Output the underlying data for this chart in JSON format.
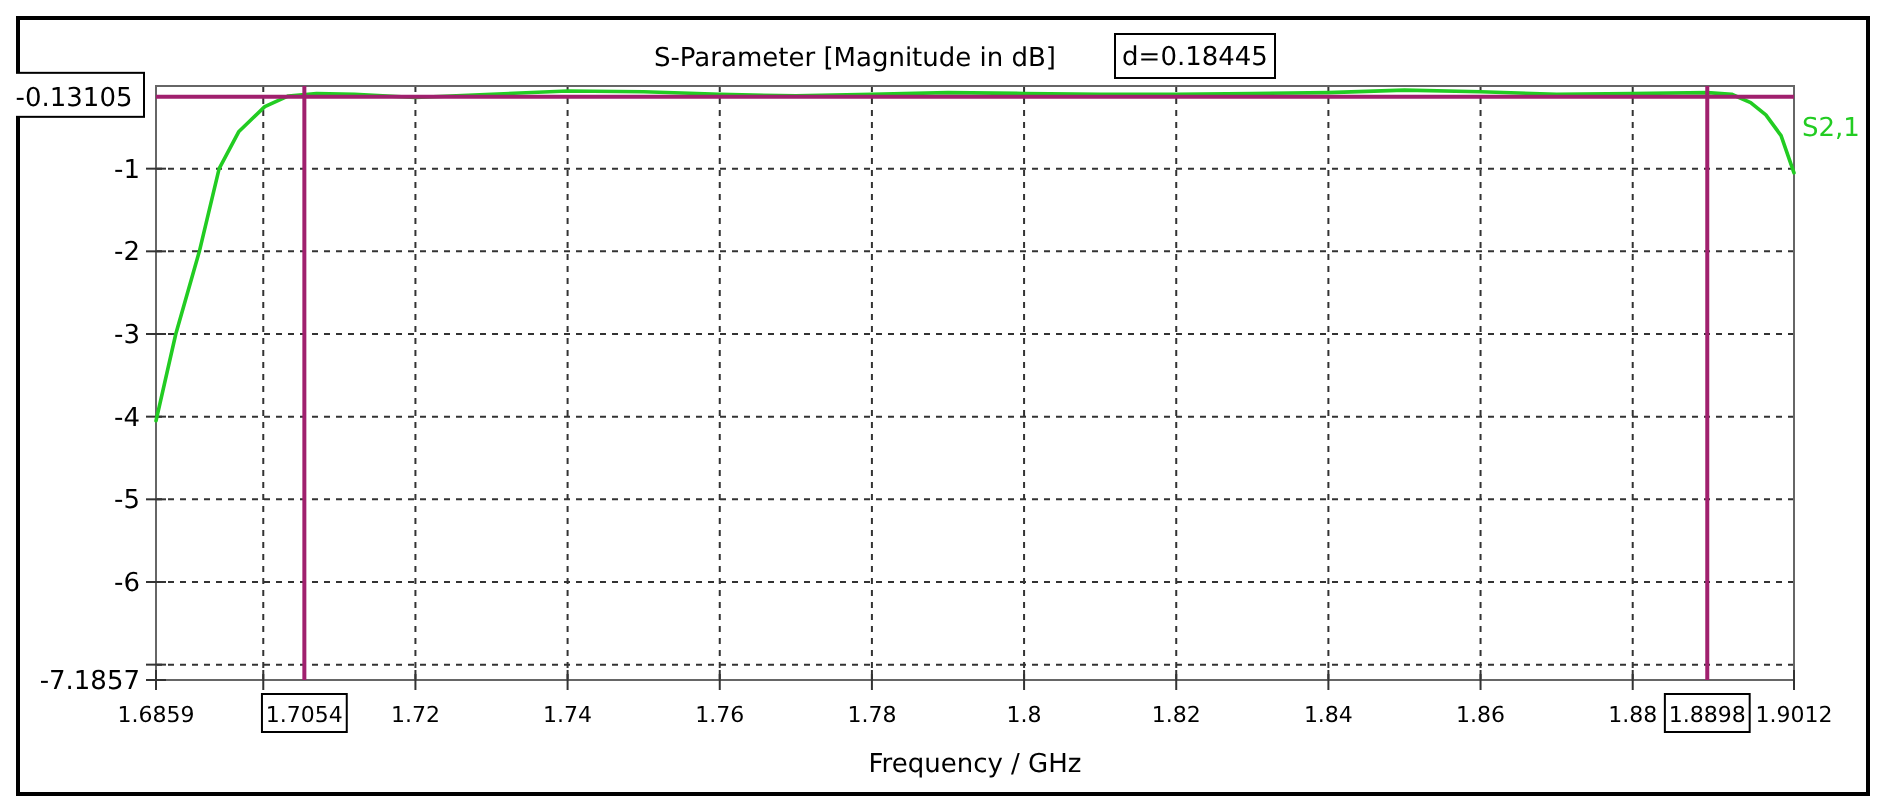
{
  "chart_data": {
    "type": "line",
    "title": "S-Parameter [Magnitude in dB]",
    "xlabel": "Frequency / GHz",
    "x": [
      1.6859,
      1.6885,
      1.6916,
      1.6942,
      1.6968,
      1.7002,
      1.7033,
      1.707,
      1.712,
      1.72,
      1.73,
      1.74,
      1.75,
      1.76,
      1.77,
      1.78,
      1.79,
      1.8,
      1.81,
      1.82,
      1.83,
      1.84,
      1.85,
      1.86,
      1.87,
      1.88,
      1.8898,
      1.893,
      1.8955,
      1.8975,
      1.8995,
      1.9012
    ],
    "series": [
      {
        "name": "S2,1",
        "color": "#22cc22",
        "values": [
          -4.05,
          -3.0,
          -2.0,
          -1.0,
          -0.55,
          -0.25,
          -0.12,
          -0.09,
          -0.1,
          -0.14,
          -0.1,
          -0.06,
          -0.07,
          -0.1,
          -0.12,
          -0.1,
          -0.08,
          -0.09,
          -0.1,
          -0.1,
          -0.09,
          -0.08,
          -0.05,
          -0.07,
          -0.1,
          -0.09,
          -0.08,
          -0.1,
          -0.2,
          -0.35,
          -0.6,
          -1.05
        ]
      }
    ],
    "xlim": [
      1.6859,
      1.9012
    ],
    "ylim": [
      -7.1857,
      0
    ],
    "xticks": [
      1.6859,
      {
        "value": 1.7,
        "label": null
      },
      1.72,
      1.74,
      1.76,
      1.78,
      1.8,
      1.82,
      1.84,
      1.86,
      1.88,
      1.9012
    ],
    "yticks": [
      -7.1857,
      {
        "value": -7,
        "label": null
      },
      -6,
      -5,
      -4,
      -3,
      -2,
      -1
    ],
    "ref_lines": [
      {
        "axis": "x",
        "value": 1.7054,
        "label": "1.7054",
        "color": "#a0206e"
      },
      {
        "axis": "x",
        "value": 1.8898,
        "label": "1.8898",
        "color": "#a0206e"
      },
      {
        "axis": "y",
        "value": -0.13105,
        "label": "-0.13105",
        "color": "#a0206e"
      }
    ],
    "annotations": [
      "d=0.18445"
    ],
    "grid": true,
    "line_style": "solid",
    "marker": "none",
    "legend": "right"
  }
}
